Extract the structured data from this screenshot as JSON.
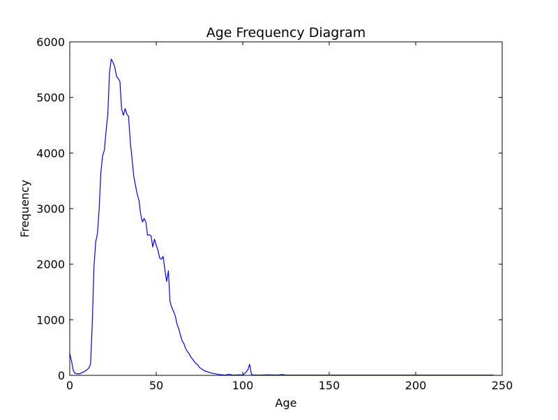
{
  "chart_data": {
    "type": "line",
    "title": "Age Frequency Diagram",
    "xlabel": "Age",
    "ylabel": "Frequency",
    "xlim": [
      0,
      250
    ],
    "ylim": [
      0,
      6000
    ],
    "xticks": [
      0,
      50,
      100,
      150,
      200,
      250
    ],
    "yticks": [
      0,
      1000,
      2000,
      3000,
      4000,
      5000,
      6000
    ],
    "xtick_labels": [
      "0",
      "50",
      "100",
      "150",
      "200",
      "250"
    ],
    "ytick_labels": [
      "0",
      "1000",
      "2000",
      "3000",
      "4000",
      "5000",
      "6000"
    ],
    "grid": false,
    "line_color": "#0000ff",
    "series": [
      {
        "x": [
          0,
          1,
          2,
          3,
          4,
          5,
          6,
          7,
          8,
          9,
          10,
          11,
          12,
          13,
          14,
          15,
          16,
          17,
          18,
          19,
          20,
          21,
          22,
          23,
          24,
          25,
          26,
          27,
          28,
          29,
          30,
          31,
          32,
          33,
          34,
          35,
          36,
          37,
          38,
          39,
          40,
          41,
          42,
          43,
          44,
          45,
          46,
          47,
          48,
          49,
          50,
          51,
          52,
          53,
          54,
          55,
          56,
          57,
          58,
          59,
          60,
          61,
          62,
          63,
          64,
          65,
          66,
          67,
          68,
          69,
          70,
          71,
          72,
          73,
          74,
          75,
          76,
          77,
          78,
          79,
          80,
          82,
          84,
          86,
          88,
          90,
          92,
          94,
          96,
          98,
          100,
          101,
          102,
          103,
          104,
          105,
          106,
          110,
          115,
          120,
          123,
          125,
          130,
          150,
          200,
          245
        ],
        "y": [
          390,
          260,
          90,
          40,
          30,
          25,
          30,
          50,
          60,
          80,
          100,
          130,
          200,
          900,
          1950,
          2400,
          2550,
          3000,
          3650,
          3950,
          4050,
          4400,
          4700,
          5450,
          5690,
          5630,
          5550,
          5380,
          5340,
          5290,
          4790,
          4680,
          4800,
          4700,
          4660,
          4200,
          3900,
          3580,
          3420,
          3260,
          3150,
          2900,
          2760,
          2820,
          2760,
          2520,
          2530,
          2510,
          2310,
          2450,
          2340,
          2250,
          2110,
          2090,
          2140,
          1900,
          1690,
          1880,
          1320,
          1220,
          1150,
          1070,
          920,
          840,
          720,
          620,
          570,
          480,
          430,
          390,
          330,
          290,
          250,
          210,
          190,
          140,
          120,
          100,
          80,
          70,
          60,
          40,
          30,
          15,
          10,
          5,
          20,
          5,
          5,
          10,
          5,
          30,
          60,
          100,
          200,
          20,
          5,
          5,
          10,
          5,
          15,
          5,
          5,
          5,
          5,
          5
        ]
      }
    ]
  }
}
